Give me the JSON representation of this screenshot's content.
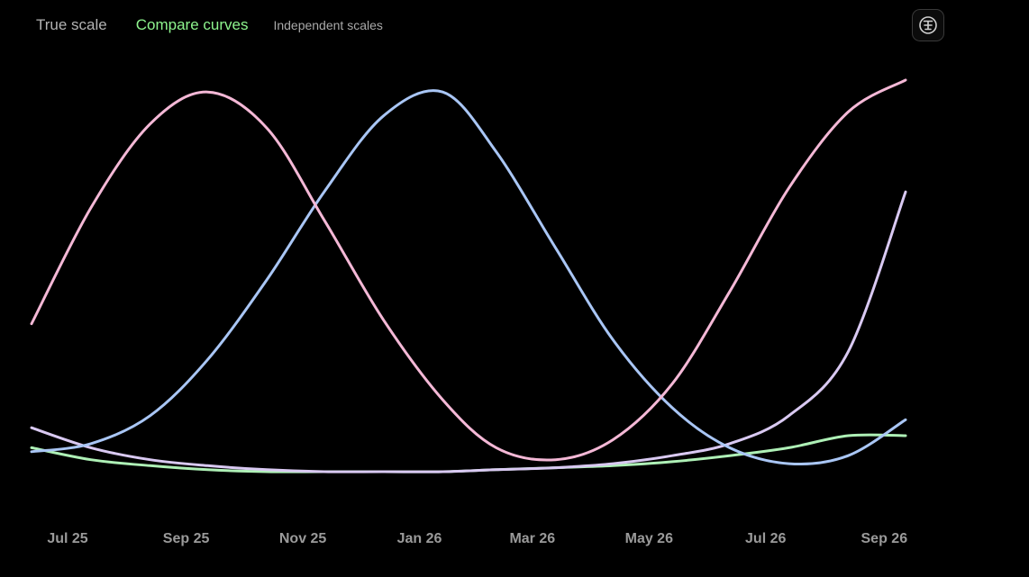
{
  "toolbar": {
    "tabs": [
      {
        "label": "True scale"
      },
      {
        "label": "Compare curves",
        "selected": true
      },
      {
        "label": "Independent scales"
      }
    ],
    "settings_icon": "text-strikethrough-icon"
  },
  "colors": {
    "background": "#000000",
    "active_tab": "#8ef58e",
    "inactive_tab": "#b3b3b3",
    "tick_text": "#9a9a9a"
  },
  "chart_data": {
    "type": "line",
    "title": "",
    "xlabel": "",
    "ylabel": "",
    "x_tick_labels": [
      "Jul 25",
      "Sep 25",
      "Nov 25",
      "Jan 26",
      "Mar 26",
      "May 26",
      "Jul 26",
      "Sep 26"
    ],
    "y_axis_visible": false,
    "grid": false,
    "legend": "none",
    "x": [
      "2025-07-01",
      "2025-08-01",
      "2025-09-01",
      "2025-10-01",
      "2025-11-01",
      "2025-12-01",
      "2026-01-01",
      "2026-02-01",
      "2026-03-01",
      "2026-04-01",
      "2026-05-01",
      "2026-06-01",
      "2026-07-01",
      "2026-08-01",
      "2026-09-01",
      "2026-10-01"
    ],
    "ylim": [
      0,
      100
    ],
    "series": [
      {
        "color": "#f4b8d6",
        "values": [
          37,
          66,
          87,
          95,
          86,
          63,
          38,
          18,
          6,
          3,
          8,
          22,
          45,
          71,
          90,
          98
        ]
      },
      {
        "color": "#a9c6f5",
        "values": [
          5,
          7,
          14,
          28,
          48,
          70,
          89,
          95,
          80,
          56,
          33,
          16,
          6,
          2,
          4,
          13
        ]
      },
      {
        "color": "#d9c9f2",
        "values": [
          11,
          6,
          3,
          1.5,
          0.5,
          0,
          0,
          0,
          0.5,
          1,
          2,
          4,
          7,
          14,
          30,
          70
        ]
      },
      {
        "color": "#aef0b6",
        "values": [
          6,
          3,
          1.5,
          0.5,
          0,
          0,
          0,
          0,
          0.5,
          1,
          1.5,
          2.5,
          4,
          6,
          9,
          9
        ]
      }
    ]
  }
}
